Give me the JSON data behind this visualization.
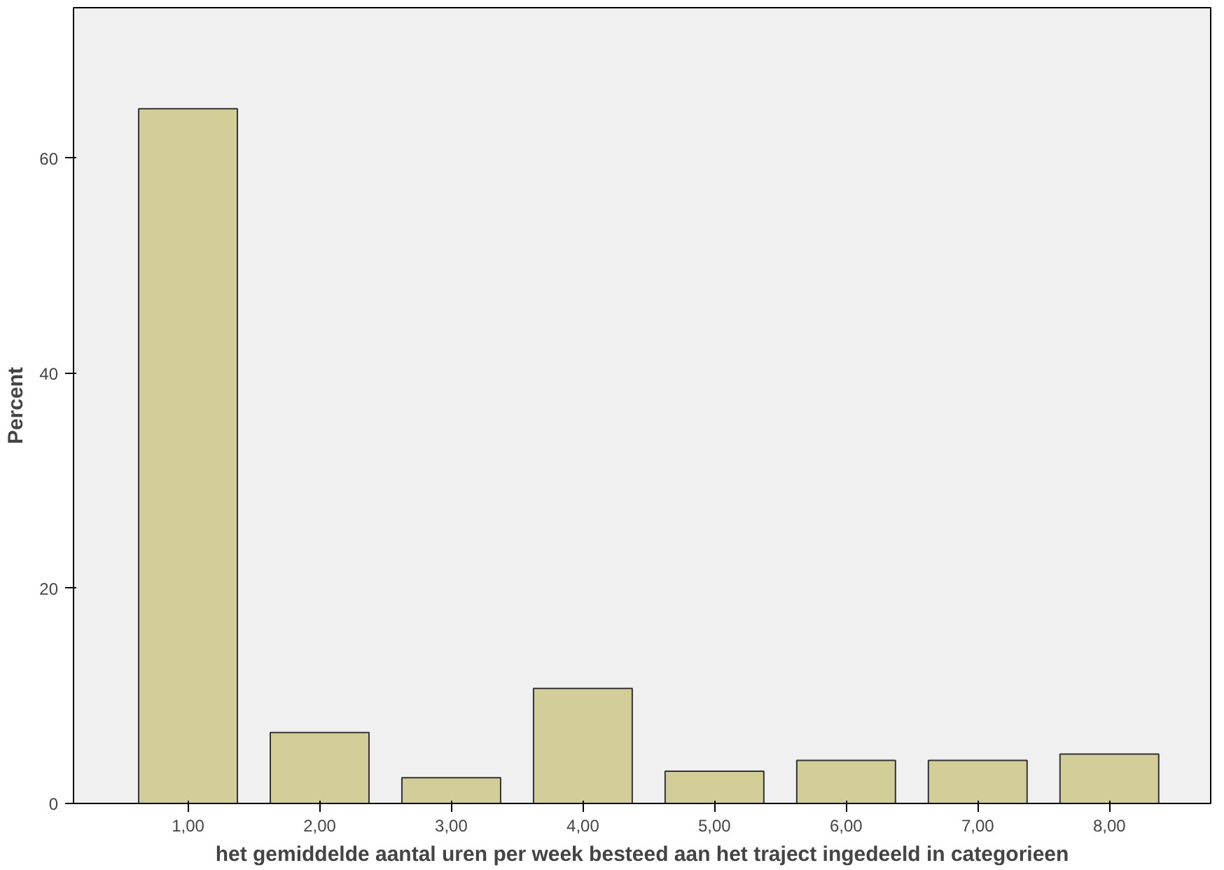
{
  "chart_data": {
    "type": "bar",
    "xlabel": "het gemiddelde aantal uren per week besteed aan het traject ingedeeld in categorieen",
    "ylabel": "Percent",
    "categories": [
      "1,00",
      "2,00",
      "3,00",
      "4,00",
      "5,00",
      "6,00",
      "7,00",
      "8,00"
    ],
    "values": [
      64.6,
      6.6,
      2.4,
      10.7,
      3.0,
      4.0,
      4.0,
      4.6
    ],
    "color": "#d3ce97",
    "ylim": [
      0,
      74
    ],
    "yticks": [
      0,
      20,
      40,
      60
    ],
    "grid": false
  }
}
